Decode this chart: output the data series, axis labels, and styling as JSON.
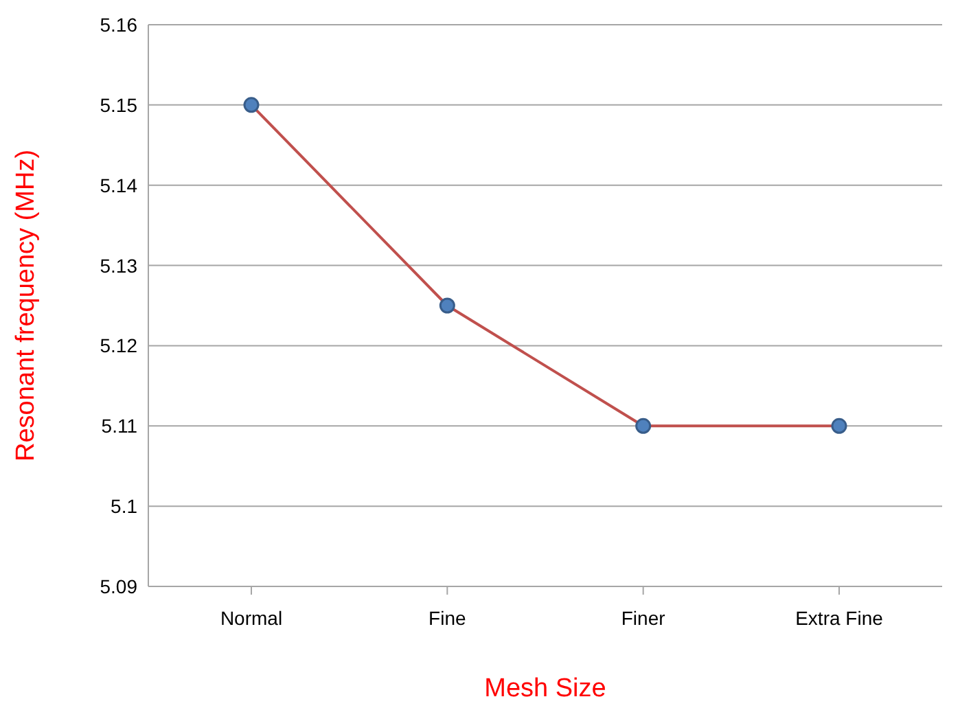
{
  "chart_data": {
    "type": "line",
    "xlabel": "Mesh Size",
    "ylabel": "Resonant frequency (MHz)",
    "categories": [
      "Normal",
      "Fine",
      "Finer",
      "Extra Fine"
    ],
    "series": [
      {
        "color": "#c0504d",
        "values": [
          5.15,
          5.125,
          5.11,
          5.11
        ]
      }
    ],
    "ylim": [
      5.09,
      5.16
    ],
    "yticks": [
      5.09,
      5.1,
      5.11,
      5.12,
      5.13,
      5.14,
      5.15,
      5.16
    ],
    "grid": "y",
    "marker": "circle",
    "line_style": "solid"
  }
}
